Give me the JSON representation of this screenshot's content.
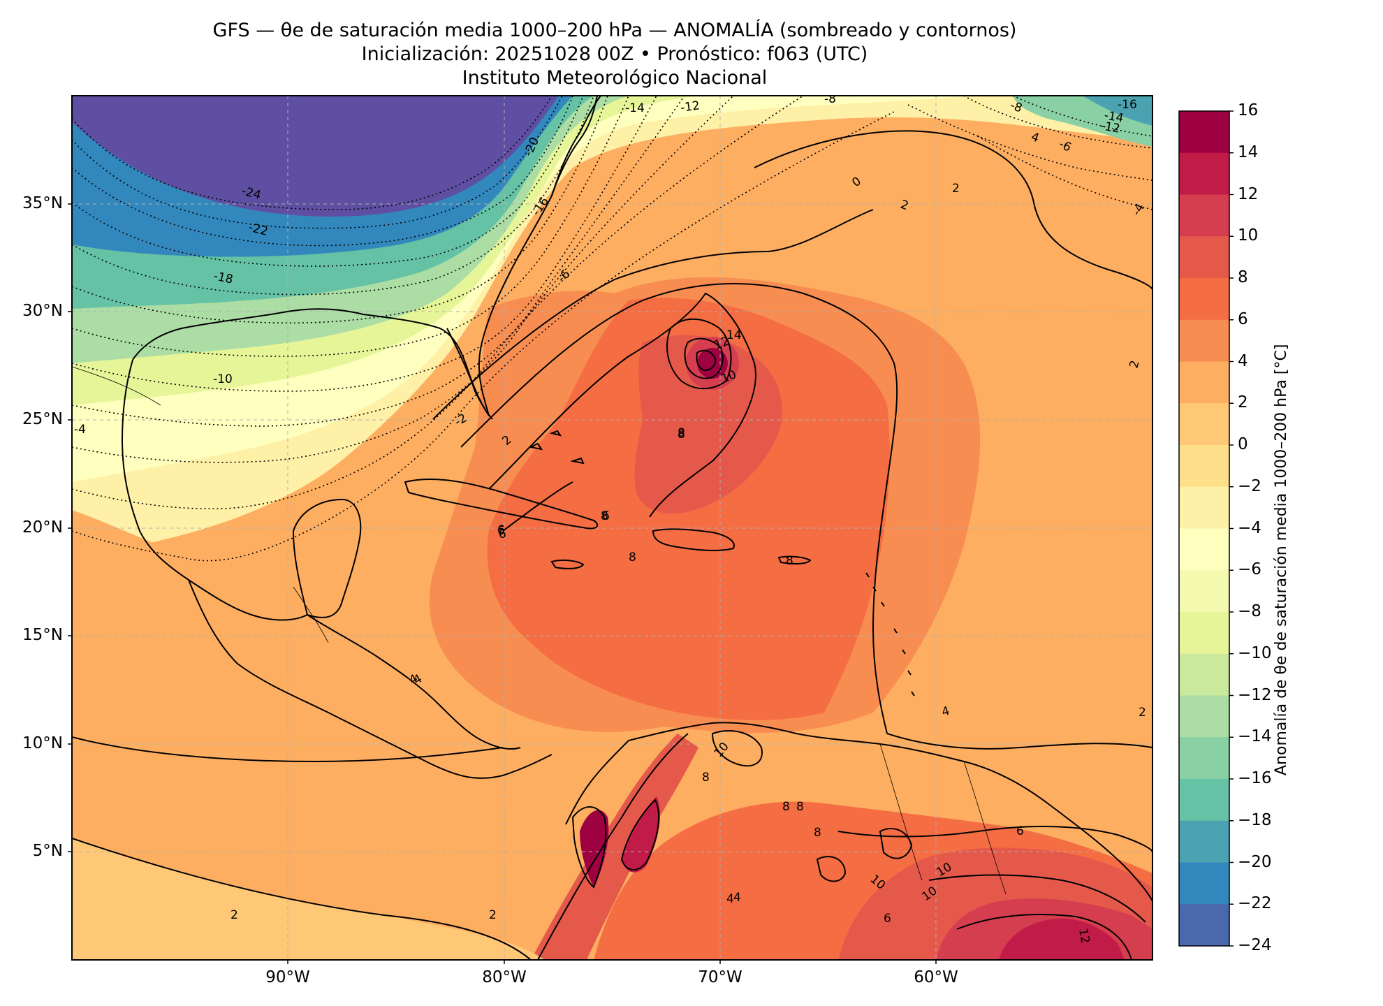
{
  "title": {
    "line1": "GFS — θe de saturación media 1000–200 hPa — ANOMALÍA (sombreado y contornos)",
    "line2": "Inicialización: 20251028 00Z   •   Pronóstico: f063 (UTC)",
    "line3": "Instituto Meteorológico Nacional"
  },
  "map": {
    "lon_range": [
      -100,
      -50
    ],
    "lat_range": [
      0,
      40
    ],
    "lat_ticks": [
      "35°N",
      "30°N",
      "25°N",
      "20°N",
      "15°N",
      "10°N",
      "5°N"
    ],
    "lon_ticks": [
      "90°W",
      "80°W",
      "70°W",
      "60°W"
    ],
    "contour_labels": [
      "-24",
      "-22",
      "-20",
      "-18",
      "-16",
      "-14",
      "-12",
      "-10",
      "-8",
      "-6",
      "-4",
      "-2",
      "0",
      "2",
      "4",
      "6",
      "8",
      "10",
      "12",
      "14",
      "-16",
      "-14",
      "-12",
      "-8",
      "-6",
      "4",
      "2",
      "2",
      "-4",
      "2",
      "4",
      "6",
      "6",
      "8",
      "8",
      "8",
      "8",
      "10",
      "10",
      "8",
      "6",
      "4",
      "2",
      "2",
      "8",
      "8",
      "10",
      "10",
      "12",
      "6",
      "6",
      "4",
      "2",
      "4",
      "8"
    ],
    "colors": {
      "land_lines": "#000000",
      "grid": "#b0b0b0"
    }
  },
  "colorbar": {
    "title": "Anomalía de θe de saturación media 1000–200 hPa [°C]",
    "tick_labels": [
      "16",
      "14",
      "12",
      "10",
      "8",
      "6",
      "4",
      "2",
      "0",
      "−2",
      "−4",
      "−6",
      "−8",
      "−10",
      "−12",
      "−14",
      "−16",
      "−18",
      "−20",
      "−22",
      "−24"
    ],
    "colors": [
      "#9e0142",
      "#c11c48",
      "#d53e4f",
      "#e5594b",
      "#f46d43",
      "#f88d51",
      "#fdae61",
      "#fec877",
      "#fee08b",
      "#fef0a7",
      "#ffffbf",
      "#f3fab0",
      "#e6f598",
      "#cbe99d",
      "#abdda4",
      "#89d0a4",
      "#66c2a5",
      "#4ba3b2",
      "#3288bd",
      "#4a69ad",
      "#5e4fa2"
    ]
  }
}
